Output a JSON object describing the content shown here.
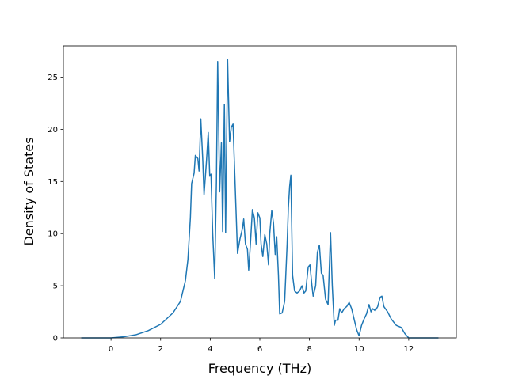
{
  "chart_data": {
    "type": "line",
    "xlabel": "Frequency (THz)",
    "ylabel": "Density of States",
    "x": [
      -1.2,
      0,
      0.5,
      1,
      1.5,
      2,
      2.5,
      2.8,
      3.0,
      3.1,
      3.2,
      3.25,
      3.35,
      3.4,
      3.5,
      3.55,
      3.62,
      3.7,
      3.75,
      3.85,
      3.92,
      3.98,
      4.03,
      4.1,
      4.18,
      4.25,
      4.3,
      4.38,
      4.45,
      4.5,
      4.57,
      4.62,
      4.7,
      4.78,
      4.85,
      4.92,
      5.0,
      5.1,
      5.2,
      5.3,
      5.35,
      5.42,
      5.5,
      5.55,
      5.62,
      5.7,
      5.78,
      5.85,
      5.92,
      6.0,
      6.05,
      6.12,
      6.2,
      6.28,
      6.35,
      6.4,
      6.48,
      6.55,
      6.62,
      6.68,
      6.75,
      6.8,
      6.9,
      7.0,
      7.1,
      7.15,
      7.2,
      7.25,
      7.32,
      7.4,
      7.5,
      7.6,
      7.7,
      7.78,
      7.85,
      7.95,
      8.02,
      8.1,
      8.15,
      8.25,
      8.32,
      8.4,
      8.48,
      8.55,
      8.65,
      8.75,
      8.85,
      8.92,
      9.0,
      9.05,
      9.15,
      9.22,
      9.3,
      9.4,
      9.5,
      9.6,
      9.7,
      9.8,
      9.9,
      10.0,
      10.1,
      10.2,
      10.3,
      10.4,
      10.48,
      10.55,
      10.65,
      10.75,
      10.85,
      10.92,
      11.0,
      11.15,
      11.3,
      11.5,
      11.7,
      11.85,
      12.0,
      13.2
    ],
    "series": [
      {
        "color": "#1f77b4",
        "values": [
          0,
          0,
          0.1,
          0.3,
          0.7,
          1.3,
          2.4,
          3.5,
          5.5,
          7.5,
          11.5,
          14.8,
          15.8,
          17.5,
          17.2,
          16,
          21,
          17,
          13.7,
          17,
          19.7,
          15.5,
          15.7,
          10,
          5.7,
          15,
          26.5,
          14,
          18.7,
          10.2,
          22.4,
          10.1,
          26.7,
          18.8,
          20.2,
          20.5,
          15,
          8.1,
          9.5,
          10.5,
          11.4,
          9,
          8.5,
          6.5,
          9,
          12.3,
          11.5,
          9,
          12,
          11.5,
          9,
          7.8,
          9.9,
          9,
          7,
          10,
          12.2,
          11,
          8,
          9.7,
          6,
          2.3,
          2.4,
          3.5,
          9,
          12.5,
          14.5,
          15.6,
          6,
          4.5,
          4.3,
          4.5,
          5,
          4.3,
          4.5,
          6.8,
          7,
          5,
          4,
          5,
          8.2,
          8.9,
          6.2,
          6,
          3.7,
          3.2,
          10.1,
          5,
          1.2,
          1.7,
          1.7,
          2.8,
          2.4,
          2.8,
          3,
          3.4,
          2.8,
          1.8,
          0.8,
          0.2,
          1.2,
          1.8,
          2.3,
          3.2,
          2.5,
          2.8,
          2.6,
          3,
          3.9,
          4,
          3,
          2.5,
          1.8,
          1.2,
          1.0,
          0.4,
          0,
          0
        ]
      }
    ],
    "xlim": [
      -1.92,
      13.92
    ],
    "ylim": [
      0,
      28
    ],
    "xticks": [
      0,
      2,
      4,
      6,
      8,
      10,
      12
    ],
    "yticks": [
      0,
      5,
      10,
      15,
      20,
      25
    ]
  }
}
